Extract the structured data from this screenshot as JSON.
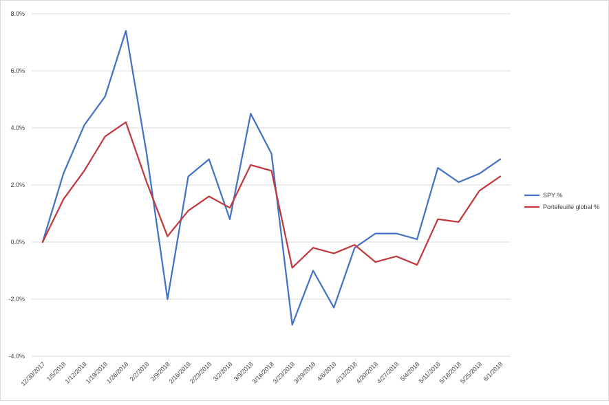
{
  "chart_data": {
    "type": "line",
    "title": "",
    "xlabel": "",
    "ylabel": "",
    "ylim": [
      -4.0,
      8.0
    ],
    "y_ticks": [
      "-4.0%",
      "-2.0%",
      "0.0%",
      "2.0%",
      "4.0%",
      "6.0%",
      "8.0%"
    ],
    "y_tick_values": [
      -4,
      -2,
      0,
      2,
      4,
      6,
      8
    ],
    "grid": true,
    "legend_position": "right",
    "categories": [
      "12/30/2017",
      "1/5/2018",
      "1/12/2018",
      "1/19/2018",
      "1/26/2018",
      "2/2/2018",
      "2/9/2018",
      "2/16/2018",
      "2/23/2018",
      "3/2/2018",
      "3/9/2018",
      "3/16/2018",
      "3/23/2018",
      "3/29/2018",
      "4/6/2018",
      "4/13/2018",
      "4/20/2018",
      "4/27/2018",
      "5/4/2018",
      "5/11/2018",
      "5/18/2018",
      "5/25/2018",
      "6/1/2018"
    ],
    "series": [
      {
        "name": "SPY %",
        "color": "#4472c4",
        "values": [
          0.0,
          2.4,
          4.1,
          5.1,
          7.4,
          3.1,
          -2.0,
          2.3,
          2.9,
          0.8,
          4.5,
          3.1,
          -2.9,
          -1.0,
          -2.3,
          -0.2,
          0.3,
          0.3,
          0.1,
          2.6,
          2.1,
          2.4,
          2.9
        ]
      },
      {
        "name": "Portefeuille global %",
        "color": "#c0393d",
        "values": [
          0.0,
          1.5,
          2.5,
          3.7,
          4.2,
          2.1,
          0.2,
          1.1,
          1.6,
          1.2,
          2.7,
          2.5,
          -0.9,
          -0.2,
          -0.4,
          -0.1,
          -0.7,
          -0.5,
          -0.8,
          0.8,
          0.7,
          1.8,
          2.3
        ]
      }
    ]
  }
}
